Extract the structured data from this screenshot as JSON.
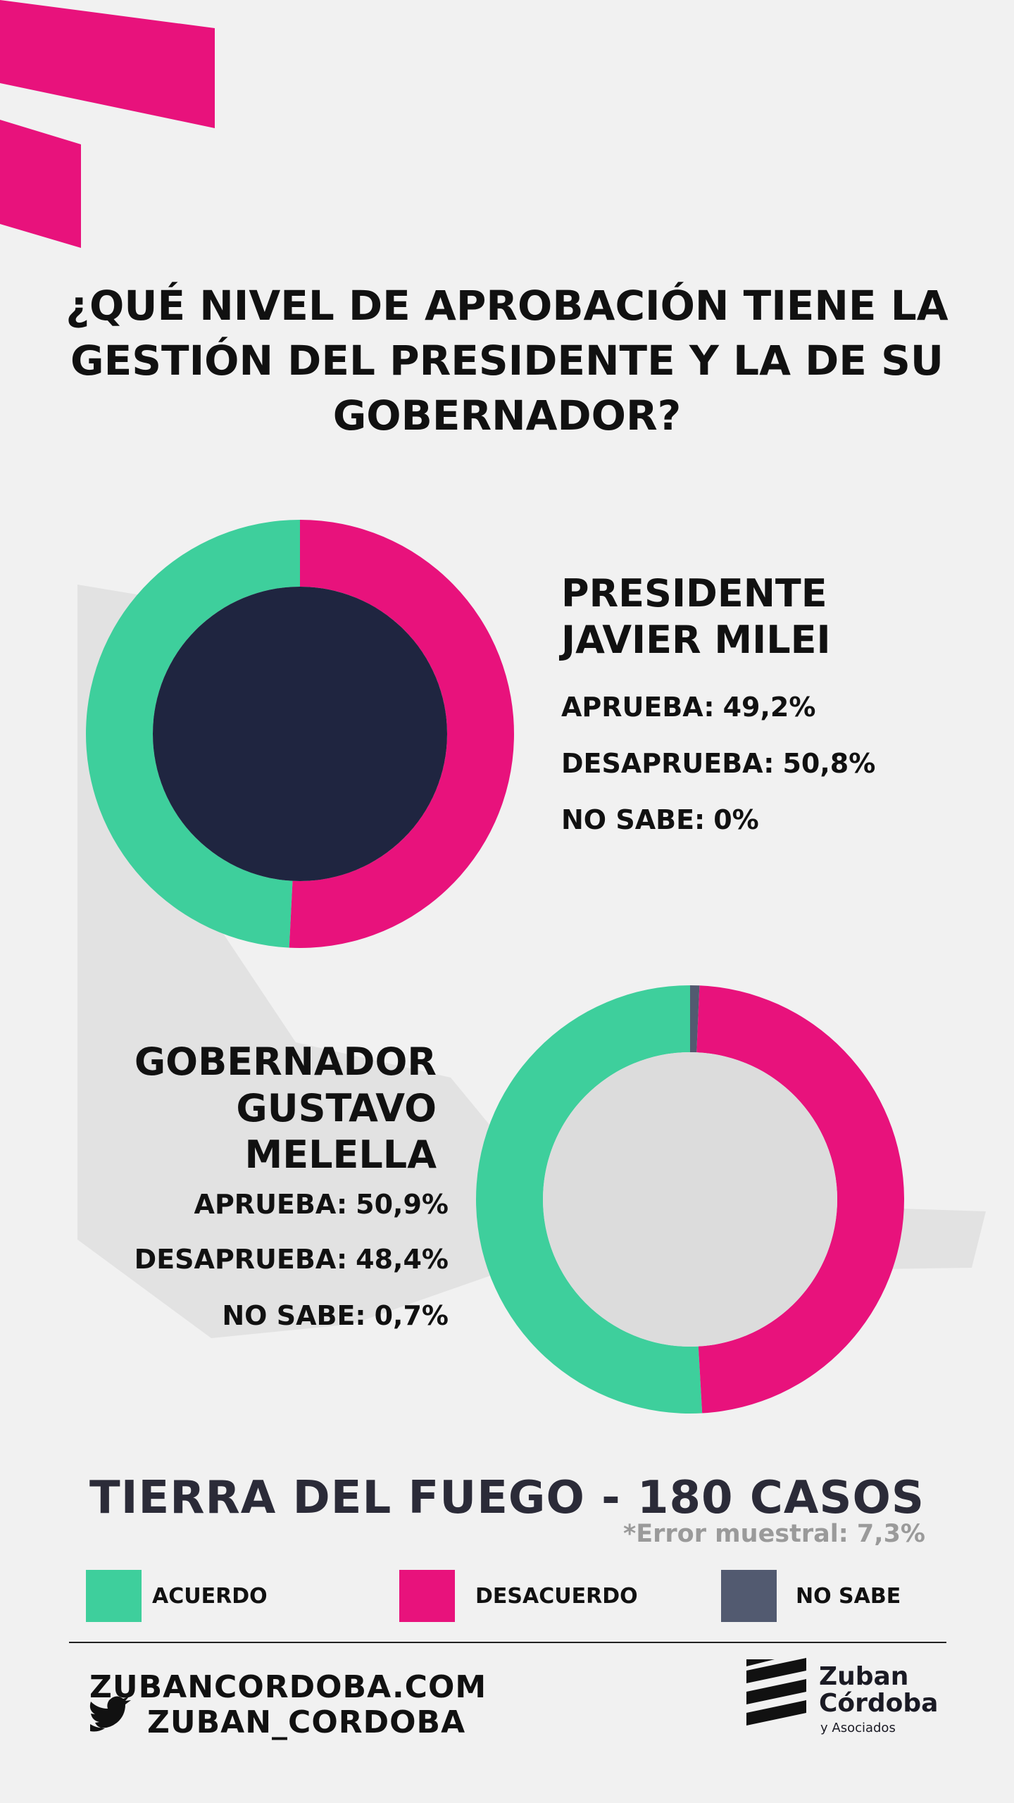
{
  "title": "¿QUÉ NIVEL DE APROBACIÓN TIENE LA GESTIÓN DEL PRESIDENTE Y LA DE SU GOBERNADOR?",
  "chart_data": [
    {
      "type": "donut",
      "title": "PRESIDENTE JAVIER MILEI",
      "categories": [
        "APRUEBA:",
        "DESAPRUEBA:",
        "NO SABE:"
      ],
      "values": [
        49.2,
        50.8,
        0
      ],
      "value_labels": [
        "49,2%",
        "50,8%",
        "0%"
      ],
      "colors": [
        "#3ecf9c",
        "#e8127c",
        "#525a70"
      ]
    },
    {
      "type": "donut",
      "title": "GOBERNADOR GUSTAVO MELELLA",
      "categories": [
        "APRUEBA:",
        "DESAPRUEBA:",
        "NO SABE:"
      ],
      "values": [
        50.9,
        48.4,
        0.7
      ],
      "value_labels": [
        "50,9%",
        "48,4%",
        "0,7%"
      ],
      "colors": [
        "#3ecf9c",
        "#e8127c",
        "#525a70"
      ]
    }
  ],
  "subtitle": "TIERRA DEL FUEGO - 180 CASOS",
  "note": "*Error muestral: 7,3%",
  "legend": [
    {
      "label": "ACUERDO",
      "color": "#3ecf9c"
    },
    {
      "label": "DESACUERDO",
      "color": "#e8127c"
    },
    {
      "label": "NO SABE",
      "color": "#525a70"
    }
  ],
  "footer": {
    "website": "ZUBANCORDOBA.COM",
    "twitter": "ZUBAN_CORDOBA"
  },
  "logo": {
    "name": "Zuban Córdoba",
    "tagline": "y Asociados"
  }
}
